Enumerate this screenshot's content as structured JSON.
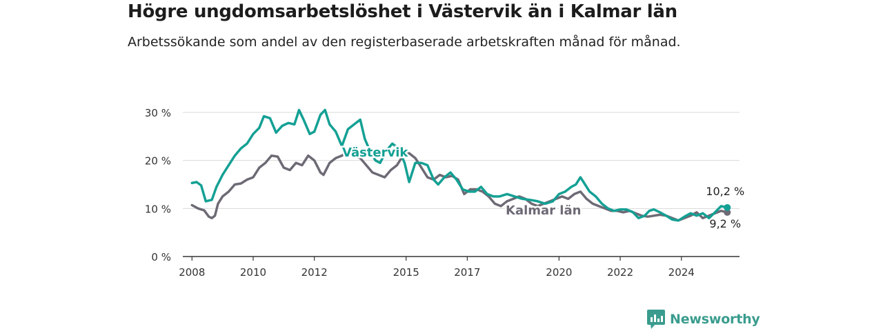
{
  "title": "Högre ungdomsarbetslöshet i Västervik än i Kalmar län",
  "subtitle": "Arbetssökande som andel av den registerbaserade arbetskraften månad för månad.",
  "brand": {
    "name": "Newsworthy",
    "icon": "newsworthy-logo-icon",
    "color": "#3a9c8e"
  },
  "chart_data": {
    "type": "line",
    "xlim": [
      2007.7,
      2025.9
    ],
    "ylim": [
      0,
      30
    ],
    "y_ticks": [
      {
        "value": 0,
        "label": "0 %"
      },
      {
        "value": 10,
        "label": "10 %"
      },
      {
        "value": 20,
        "label": "20 %"
      },
      {
        "value": 30,
        "label": "30 %"
      }
    ],
    "x_ticks": [
      {
        "value": 2008,
        "label": "2008"
      },
      {
        "value": 2010,
        "label": "2010"
      },
      {
        "value": 2012,
        "label": "2012"
      },
      {
        "value": 2015,
        "label": "2015"
      },
      {
        "value": 2017,
        "label": "2017"
      },
      {
        "value": 2020,
        "label": "2020"
      },
      {
        "value": 2022,
        "label": "2022"
      },
      {
        "value": 2024,
        "label": "2024"
      }
    ],
    "grid": "horizontal",
    "series": [
      {
        "name": "Kalmar län",
        "color": "#6d6a75",
        "end_label": "9,2 %",
        "points": [
          [
            2008.0,
            10.7
          ],
          [
            2008.2,
            10.0
          ],
          [
            2008.4,
            9.6
          ],
          [
            2008.55,
            8.3
          ],
          [
            2008.65,
            8.0
          ],
          [
            2008.75,
            8.5
          ],
          [
            2008.85,
            11.0
          ],
          [
            2009.0,
            12.5
          ],
          [
            2009.2,
            13.5
          ],
          [
            2009.4,
            15.0
          ],
          [
            2009.6,
            15.2
          ],
          [
            2009.8,
            16.0
          ],
          [
            2010.0,
            16.5
          ],
          [
            2010.2,
            18.5
          ],
          [
            2010.4,
            19.5
          ],
          [
            2010.6,
            21.0
          ],
          [
            2010.8,
            20.8
          ],
          [
            2011.0,
            18.5
          ],
          [
            2011.2,
            18.0
          ],
          [
            2011.4,
            19.5
          ],
          [
            2011.6,
            19.0
          ],
          [
            2011.8,
            21.0
          ],
          [
            2012.0,
            20.0
          ],
          [
            2012.2,
            17.5
          ],
          [
            2012.3,
            17.0
          ],
          [
            2012.5,
            19.5
          ],
          [
            2012.7,
            20.5
          ],
          [
            2012.9,
            21.0
          ],
          [
            2013.1,
            22.0
          ],
          [
            2013.3,
            21.0
          ],
          [
            2013.5,
            20.5
          ],
          [
            2013.7,
            19.0
          ],
          [
            2013.9,
            17.5
          ],
          [
            2014.1,
            17.0
          ],
          [
            2014.3,
            16.5
          ],
          [
            2014.5,
            18.0
          ],
          [
            2014.7,
            19.0
          ],
          [
            2014.9,
            21.0
          ],
          [
            2015.1,
            21.5
          ],
          [
            2015.3,
            20.5
          ],
          [
            2015.5,
            18.5
          ],
          [
            2015.7,
            16.5
          ],
          [
            2015.9,
            16.0
          ],
          [
            2016.1,
            17.0
          ],
          [
            2016.3,
            16.5
          ],
          [
            2016.5,
            16.8
          ],
          [
            2016.7,
            16.0
          ],
          [
            2016.9,
            13.0
          ],
          [
            2017.1,
            14.0
          ],
          [
            2017.3,
            14.0
          ],
          [
            2017.5,
            13.5
          ],
          [
            2017.7,
            12.5
          ],
          [
            2017.9,
            11.0
          ],
          [
            2018.1,
            10.5
          ],
          [
            2018.3,
            11.5
          ],
          [
            2018.5,
            12.0
          ],
          [
            2018.7,
            12.5
          ],
          [
            2018.9,
            12.0
          ],
          [
            2019.1,
            11.0
          ],
          [
            2019.3,
            10.5
          ],
          [
            2019.5,
            11.0
          ],
          [
            2019.7,
            11.5
          ],
          [
            2019.9,
            12.0
          ],
          [
            2020.1,
            12.5
          ],
          [
            2020.3,
            12.0
          ],
          [
            2020.5,
            13.0
          ],
          [
            2020.7,
            13.5
          ],
          [
            2020.9,
            12.0
          ],
          [
            2021.1,
            11.0
          ],
          [
            2021.3,
            10.5
          ],
          [
            2021.5,
            10.0
          ],
          [
            2021.7,
            9.5
          ],
          [
            2021.9,
            9.5
          ],
          [
            2022.1,
            9.2
          ],
          [
            2022.3,
            9.5
          ],
          [
            2022.5,
            9.0
          ],
          [
            2022.7,
            8.5
          ],
          [
            2022.9,
            8.3
          ],
          [
            2023.1,
            8.5
          ],
          [
            2023.3,
            8.7
          ],
          [
            2023.5,
            8.5
          ],
          [
            2023.7,
            8.0
          ],
          [
            2023.9,
            7.5
          ],
          [
            2024.1,
            8.0
          ],
          [
            2024.3,
            8.5
          ],
          [
            2024.5,
            9.2
          ],
          [
            2024.7,
            8.0
          ],
          [
            2024.9,
            8.5
          ],
          [
            2025.1,
            9.0
          ],
          [
            2025.3,
            9.5
          ],
          [
            2025.5,
            9.2
          ]
        ]
      },
      {
        "name": "Västervik",
        "color": "#14a094",
        "end_label": "10,2 %",
        "points": [
          [
            2008.0,
            15.3
          ],
          [
            2008.15,
            15.5
          ],
          [
            2008.3,
            14.8
          ],
          [
            2008.45,
            11.5
          ],
          [
            2008.65,
            11.8
          ],
          [
            2008.8,
            14.5
          ],
          [
            2009.0,
            17.0
          ],
          [
            2009.2,
            19.0
          ],
          [
            2009.4,
            21.0
          ],
          [
            2009.6,
            22.5
          ],
          [
            2009.8,
            23.5
          ],
          [
            2010.0,
            25.5
          ],
          [
            2010.2,
            26.8
          ],
          [
            2010.35,
            29.2
          ],
          [
            2010.55,
            28.8
          ],
          [
            2010.75,
            25.8
          ],
          [
            2010.95,
            27.2
          ],
          [
            2011.15,
            27.8
          ],
          [
            2011.35,
            27.5
          ],
          [
            2011.5,
            30.5
          ],
          [
            2011.65,
            28.5
          ],
          [
            2011.85,
            25.5
          ],
          [
            2012.0,
            26.0
          ],
          [
            2012.2,
            29.5
          ],
          [
            2012.35,
            30.5
          ],
          [
            2012.5,
            27.5
          ],
          [
            2012.7,
            26.0
          ],
          [
            2012.9,
            23.0
          ],
          [
            2013.1,
            26.5
          ],
          [
            2013.3,
            27.5
          ],
          [
            2013.5,
            28.5
          ],
          [
            2013.65,
            24.5
          ],
          [
            2013.85,
            21.5
          ],
          [
            2014.0,
            20.0
          ],
          [
            2014.15,
            19.5
          ],
          [
            2014.35,
            22.0
          ],
          [
            2014.55,
            23.5
          ],
          [
            2014.75,
            22.5
          ],
          [
            2014.95,
            19.5
          ],
          [
            2015.1,
            15.5
          ],
          [
            2015.3,
            19.5
          ],
          [
            2015.5,
            19.5
          ],
          [
            2015.7,
            19.0
          ],
          [
            2015.9,
            16.0
          ],
          [
            2016.05,
            15.0
          ],
          [
            2016.25,
            16.5
          ],
          [
            2016.45,
            17.5
          ],
          [
            2016.65,
            16.0
          ],
          [
            2016.85,
            14.0
          ],
          [
            2017.05,
            13.5
          ],
          [
            2017.25,
            13.5
          ],
          [
            2017.45,
            14.5
          ],
          [
            2017.65,
            13.0
          ],
          [
            2017.85,
            12.5
          ],
          [
            2018.05,
            12.5
          ],
          [
            2018.3,
            13.0
          ],
          [
            2018.55,
            12.5
          ],
          [
            2018.8,
            12.0
          ],
          [
            2019.05,
            11.8
          ],
          [
            2019.3,
            11.5
          ],
          [
            2019.55,
            11.0
          ],
          [
            2019.8,
            11.5
          ],
          [
            2020.0,
            13.0
          ],
          [
            2020.2,
            13.5
          ],
          [
            2020.4,
            14.5
          ],
          [
            2020.55,
            15.0
          ],
          [
            2020.7,
            16.5
          ],
          [
            2020.85,
            15.0
          ],
          [
            2021.0,
            13.5
          ],
          [
            2021.2,
            12.5
          ],
          [
            2021.4,
            11.0
          ],
          [
            2021.6,
            10.0
          ],
          [
            2021.8,
            9.5
          ],
          [
            2022.0,
            9.8
          ],
          [
            2022.2,
            9.8
          ],
          [
            2022.4,
            9.3
          ],
          [
            2022.6,
            8.0
          ],
          [
            2022.8,
            8.5
          ],
          [
            2022.95,
            9.5
          ],
          [
            2023.1,
            9.8
          ],
          [
            2023.3,
            9.2
          ],
          [
            2023.5,
            8.5
          ],
          [
            2023.7,
            7.7
          ],
          [
            2023.9,
            7.5
          ],
          [
            2024.1,
            8.3
          ],
          [
            2024.3,
            9.0
          ],
          [
            2024.5,
            8.5
          ],
          [
            2024.7,
            9.0
          ],
          [
            2024.9,
            8.0
          ],
          [
            2025.1,
            9.2
          ],
          [
            2025.3,
            10.5
          ],
          [
            2025.5,
            10.2
          ]
        ]
      }
    ]
  }
}
